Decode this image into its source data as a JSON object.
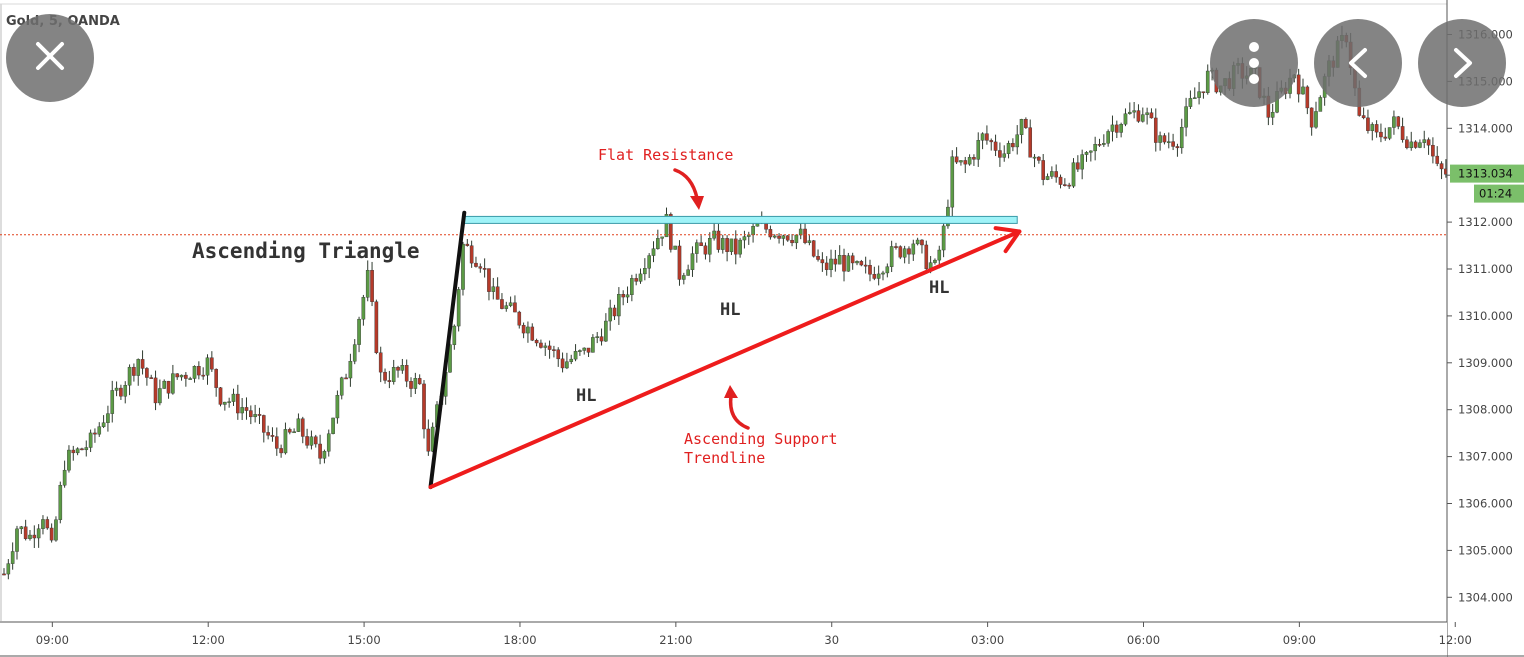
{
  "symbol_label": "Gold, 5, OANDA",
  "overlay": {
    "close_icon": "close-icon",
    "more_icon": "more-vertical-icon",
    "prev_icon": "chevron-left-icon",
    "next_icon": "chevron-right-icon"
  },
  "colors": {
    "up_candle": "#5b9a45",
    "down_candle": "#b53a2a",
    "wick": "#2f3b2f",
    "resistance_fill": "#9ff3f8",
    "resistance_stroke": "#3a9aa8",
    "support_line": "#ee1c1c",
    "price_line": "#e0401c",
    "annotation_red": "#e02020",
    "price_badge": "#7bbf6a"
  },
  "chart_data": {
    "type": "candlestick",
    "y_axis": {
      "min": 1303.5,
      "max": 1316.4,
      "ticks": [
        1304,
        1305,
        1306,
        1307,
        1308,
        1309,
        1310,
        1311,
        1312,
        1313,
        1314,
        1315,
        1316
      ],
      "tick_labels": [
        "1304.000",
        "1305.000",
        "1306.000",
        "1307.000",
        "1308.000",
        "1309.000",
        "1310.000",
        "1311.000",
        "1312.000",
        "1313.000",
        "1314.000",
        "1315.000",
        "1316.000"
      ]
    },
    "x_axis": {
      "tick_labels": [
        "09:00",
        "12:00",
        "15:00",
        "18:00",
        "21:00",
        "30",
        "03:00",
        "06:00",
        "09:00",
        "12:00"
      ],
      "tick_positions": [
        1,
        37,
        73,
        109,
        145,
        181,
        217,
        253,
        289,
        325
      ]
    },
    "current_price": {
      "value": 1313.034,
      "label": "1313.034",
      "timer": "01:24"
    },
    "price_line_value": 1311.73,
    "anchors": [
      [
        0,
        1304.5
      ],
      [
        3,
        1305.5
      ],
      [
        6,
        1305.3
      ],
      [
        9,
        1305.8
      ],
      [
        11,
        1305.0
      ],
      [
        14,
        1306.9
      ],
      [
        20,
        1307.3
      ],
      [
        25,
        1308.2
      ],
      [
        31,
        1309.1
      ],
      [
        35,
        1308.3
      ],
      [
        40,
        1308.7
      ],
      [
        47,
        1309.0
      ],
      [
        50,
        1308.3
      ],
      [
        56,
        1308.0
      ],
      [
        63,
        1307.2
      ],
      [
        68,
        1307.6
      ],
      [
        73,
        1307.0
      ],
      [
        79,
        1308.8
      ],
      [
        84,
        1310.8
      ],
      [
        87,
        1308.7
      ],
      [
        91,
        1308.8
      ],
      [
        96,
        1308.5
      ],
      [
        98,
        1307.0
      ],
      [
        104,
        1309.8
      ],
      [
        106,
        1311.5
      ],
      [
        110,
        1311.2
      ],
      [
        113,
        1310.4
      ],
      [
        118,
        1310.0
      ],
      [
        124,
        1309.5
      ],
      [
        129,
        1309.0
      ],
      [
        134,
        1309.2
      ],
      [
        139,
        1309.8
      ],
      [
        144,
        1310.6
      ],
      [
        149,
        1311.4
      ],
      [
        153,
        1312.0
      ],
      [
        156,
        1310.9
      ],
      [
        159,
        1311.3
      ],
      [
        164,
        1311.6
      ],
      [
        169,
        1311.4
      ],
      [
        174,
        1311.9
      ],
      [
        179,
        1311.8
      ],
      [
        184,
        1311.7
      ],
      [
        189,
        1311.0
      ],
      [
        193,
        1311.2
      ],
      [
        196,
        1311.0
      ],
      [
        200,
        1310.9
      ],
      [
        205,
        1311.3
      ],
      [
        210,
        1311.6
      ],
      [
        212,
        1311.3
      ],
      [
        215,
        1311.0
      ],
      [
        217,
        1311.8
      ],
      [
        219,
        1313.2
      ],
      [
        222,
        1313.2
      ],
      [
        226,
        1313.8
      ],
      [
        231,
        1313.5
      ],
      [
        235,
        1314.0
      ],
      [
        240,
        1313.0
      ],
      [
        245,
        1312.9
      ],
      [
        250,
        1313.3
      ],
      [
        255,
        1314.0
      ],
      [
        258,
        1314.2
      ],
      [
        263,
        1314.4
      ],
      [
        267,
        1313.7
      ],
      [
        271,
        1313.8
      ],
      [
        274,
        1314.5
      ],
      [
        278,
        1315.1
      ],
      [
        281,
        1314.9
      ],
      [
        285,
        1315.2
      ],
      [
        289,
        1315.1
      ],
      [
        292,
        1314.3
      ],
      [
        298,
        1315.2
      ],
      [
        302,
        1314.2
      ],
      [
        306,
        1315.3
      ],
      [
        310,
        1316.0
      ],
      [
        313,
        1314.2
      ],
      [
        317,
        1313.8
      ],
      [
        321,
        1314.1
      ],
      [
        325,
        1313.7
      ],
      [
        328,
        1313.9
      ],
      [
        331,
        1313.1
      ],
      [
        334,
        1313.0
      ]
    ],
    "annotations": {
      "title": "Ascending Triangle",
      "flat_resistance": "Flat Resistance",
      "support_line_1": "Ascending Support",
      "support_line_2": "Trendline",
      "hl_labels": [
        "HL",
        "HL",
        "HL"
      ]
    },
    "resistance_zone": {
      "x_start": 106,
      "x_end": 234,
      "y_low": 1312.0,
      "y_high": 1312.1
    },
    "support_trendline": {
      "x_start": 98.5,
      "y_start": 1306.35,
      "x_end": 234.5,
      "y_end": 1311.8
    },
    "pole_line": {
      "x_start": 98.5,
      "y_start": 1306.35,
      "x_end": 106.3,
      "y_end": 1312.2
    }
  }
}
